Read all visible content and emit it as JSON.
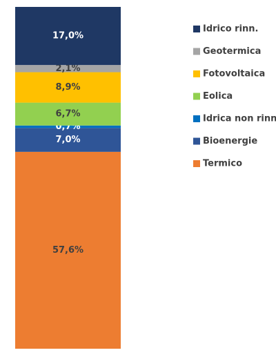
{
  "chart_data": {
    "type": "stacked_bar",
    "series": [
      {
        "name": "Termico",
        "color": "#ed7d31",
        "values": [
          57.6
        ],
        "value_labels": [
          "57,6%"
        ]
      },
      {
        "name": "Bioenergie",
        "color": "#2f5597",
        "values": [
          7.0
        ],
        "value_labels": [
          "7,0%"
        ]
      },
      {
        "name": "Idrica non rinn.",
        "color": "#0070c0",
        "values": [
          0.7
        ],
        "value_labels": [
          "0,7%"
        ]
      },
      {
        "name": "Eolica",
        "color": "#92d050",
        "values": [
          6.7
        ],
        "value_labels": [
          "6,7%"
        ]
      },
      {
        "name": "Fotovoltaica",
        "color": "#ffc000",
        "values": [
          8.9
        ],
        "value_labels": [
          "8,9%"
        ]
      },
      {
        "name": "Geotermica",
        "color": "#a5a5a5",
        "values": [
          2.1
        ],
        "value_labels": [
          "2,1%"
        ]
      },
      {
        "name": "Idrico rinn.",
        "color": "#1f3864",
        "values": [
          17.0
        ],
        "value_labels": [
          "17,0%"
        ]
      }
    ]
  }
}
